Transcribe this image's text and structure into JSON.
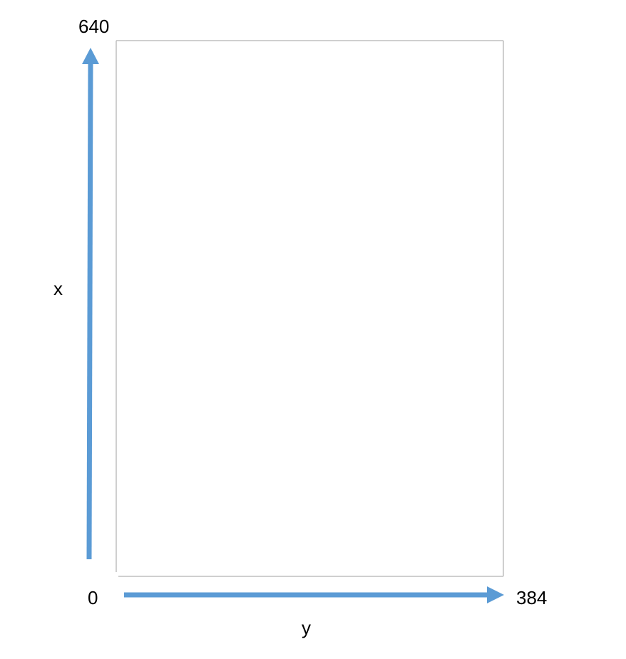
{
  "labels": {
    "x_max": "640",
    "x_axis": "x",
    "origin": "0",
    "y_max": "384",
    "y_axis": "y"
  },
  "colors": {
    "arrow": "#5b9bd5",
    "frame": "#bfbfbf"
  }
}
